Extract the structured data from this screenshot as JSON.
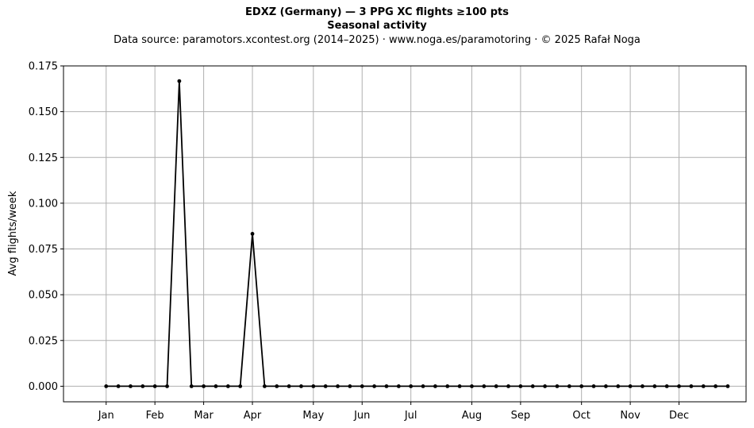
{
  "chart_data": {
    "type": "line",
    "title": "EDXZ (Germany)  —  3 PPG XC flights ≥100 pts",
    "subtitle": "Seasonal activity",
    "source": "Data source: paramotors.xcontest.org (2014–2025)  ·  www.noga.es/paramotoring  ·  © 2025 Rafał Noga",
    "xlabel": "",
    "ylabel": "Avg flights/week",
    "x_unit": "week",
    "xlim": [
      -2.5,
      53.5
    ],
    "ylim": [
      -0.0085,
      0.175
    ],
    "yticks": [
      0.0,
      0.025,
      0.05,
      0.075,
      0.1,
      0.125,
      0.15,
      0.175
    ],
    "ytick_labels": [
      "0.000",
      "0.025",
      "0.050",
      "0.075",
      "0.100",
      "0.125",
      "0.150",
      "0.175"
    ],
    "xticks": [
      {
        "week": 1,
        "label": "Jan"
      },
      {
        "week": 5,
        "label": "Feb"
      },
      {
        "week": 9,
        "label": "Mar"
      },
      {
        "week": 13,
        "label": "Apr"
      },
      {
        "week": 18,
        "label": "May"
      },
      {
        "week": 22,
        "label": "Jun"
      },
      {
        "week": 26,
        "label": "Jul"
      },
      {
        "week": 31,
        "label": "Aug"
      },
      {
        "week": 35,
        "label": "Sep"
      },
      {
        "week": 40,
        "label": "Oct"
      },
      {
        "week": 44,
        "label": "Nov"
      },
      {
        "week": 48,
        "label": "Dec"
      }
    ],
    "grid": true,
    "series": [
      {
        "color": "#000000",
        "x": [
          1,
          2,
          3,
          4,
          5,
          6,
          7,
          8,
          9,
          10,
          11,
          12,
          13,
          14,
          15,
          16,
          17,
          18,
          19,
          20,
          21,
          22,
          23,
          24,
          25,
          26,
          27,
          28,
          29,
          30,
          31,
          32,
          33,
          34,
          35,
          36,
          37,
          38,
          39,
          40,
          41,
          42,
          43,
          44,
          45,
          46,
          47,
          48,
          49,
          50,
          51,
          52
        ],
        "y": [
          0,
          0,
          0,
          0,
          0,
          0,
          0.1667,
          0,
          0,
          0,
          0,
          0,
          0.0833,
          0,
          0,
          0,
          0,
          0,
          0,
          0,
          0,
          0,
          0,
          0,
          0,
          0,
          0,
          0,
          0,
          0,
          0,
          0,
          0,
          0,
          0,
          0,
          0,
          0,
          0,
          0,
          0,
          0,
          0,
          0,
          0,
          0,
          0,
          0,
          0,
          0,
          0,
          0
        ]
      }
    ]
  }
}
